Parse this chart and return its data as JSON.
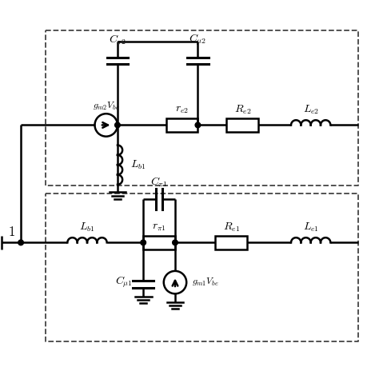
{
  "bg_color": "#ffffff",
  "line_color": "#000000",
  "dashed_color": "#444444",
  "line_width": 1.8,
  "dashed_lw": 1.3,
  "fig_size": [
    4.74,
    4.74
  ],
  "dpi": 100
}
